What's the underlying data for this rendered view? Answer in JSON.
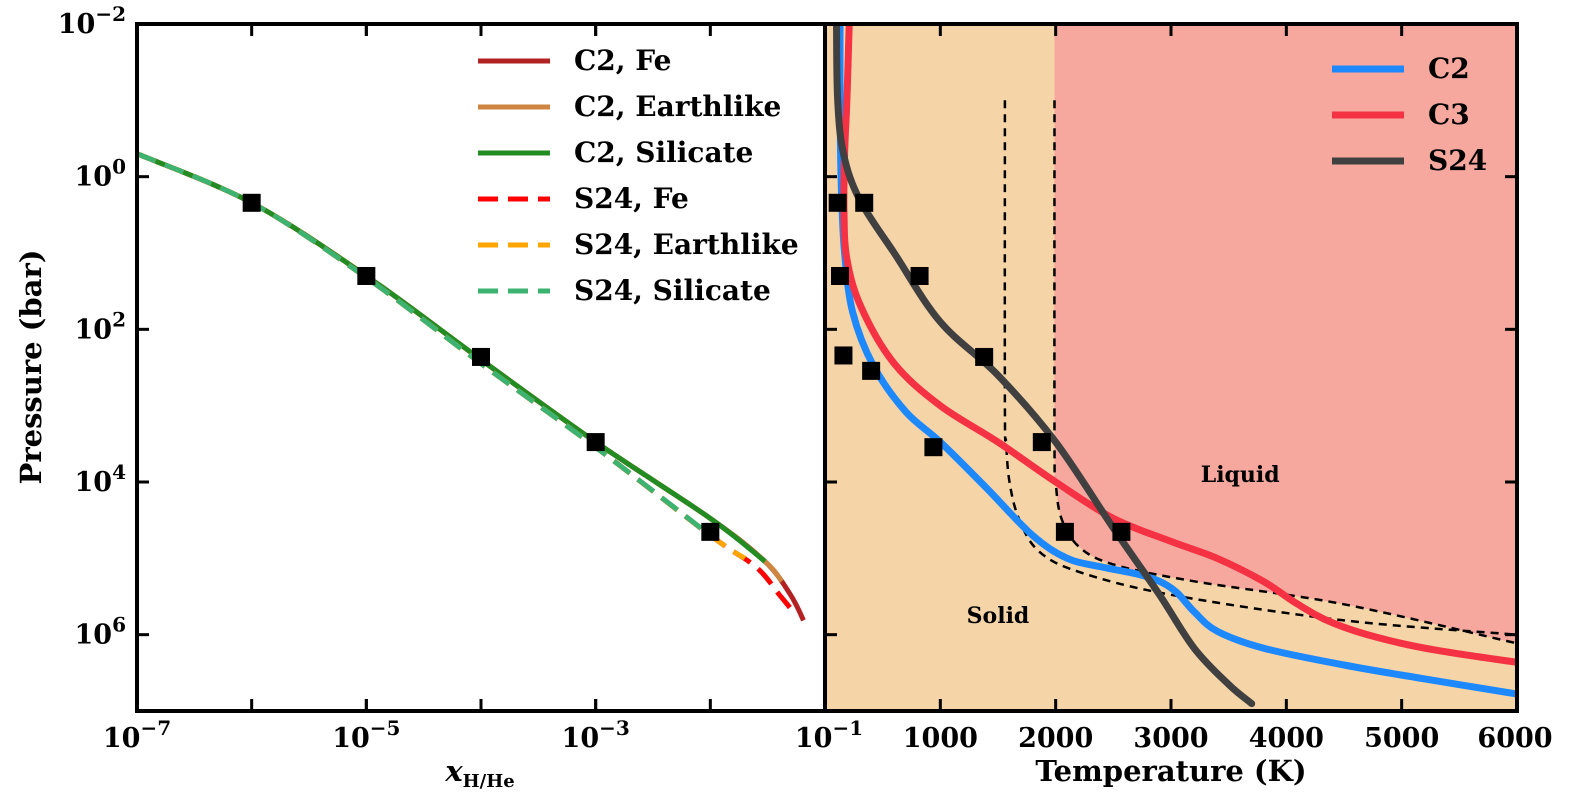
{
  "colors": {
    "c2_fe": "#b22222",
    "c2_earthlike": "#cd853f",
    "c2_silicate": "#228b22",
    "s24_fe": "#ff0000",
    "s24_earthlike": "#ffa500",
    "s24_silicate": "#3cb371",
    "c2_temp": "#1e88ff",
    "c3_temp": "#f43244",
    "s24_temp": "#404040",
    "solid_region": "#f5d5a8",
    "liquid_region": "#f6a89e",
    "marker": "#000000"
  },
  "chart_data": [
    {
      "type": "line",
      "xlabel": "x_H/He",
      "xlabel_main": "x",
      "xlabel_sub": "H/He",
      "ylabel": "Pressure (bar)",
      "xscale": "log",
      "yscale": "log",
      "yinverted": true,
      "xlim": [
        1e-07,
        0.1
      ],
      "ylim": [
        0.01,
        10000000.0
      ],
      "xticks": [
        {
          "value": 1e-07,
          "base": "10",
          "exp": "−7"
        },
        {
          "value": 1e-05,
          "base": "10",
          "exp": "−5"
        },
        {
          "value": 0.001,
          "base": "10",
          "exp": "−3"
        }
      ],
      "yticks": [
        {
          "value": 0.01,
          "base": "10",
          "exp": "−2"
        },
        {
          "value": 1,
          "base": "10",
          "exp": "0"
        },
        {
          "value": 100,
          "base": "10",
          "exp": "2"
        },
        {
          "value": 10000.0,
          "base": "10",
          "exp": "4"
        },
        {
          "value": 1000000.0,
          "base": "10",
          "exp": "6"
        }
      ],
      "legend_position": "top-right",
      "series": [
        {
          "name": "C2, Fe",
          "key": "c2_fe",
          "dash": false,
          "x": [
            1e-07,
            1e-06,
            1e-05,
            0.0001,
            0.001,
            0.01,
            0.03,
            0.05,
            0.065
          ],
          "y": [
            0.5,
            2.2,
            20,
            250,
            3000,
            30000,
            110000,
            300000,
            650000
          ]
        },
        {
          "name": "C2, Earthlike",
          "key": "c2_earthlike",
          "dash": false,
          "x": [
            1e-07,
            1e-06,
            1e-05,
            0.0001,
            0.001,
            0.01,
            0.03,
            0.042
          ],
          "y": [
            0.5,
            2.2,
            20,
            250,
            3000,
            30000,
            110000,
            200000
          ]
        },
        {
          "name": "C2, Silicate",
          "key": "c2_silicate",
          "dash": false,
          "x": [
            1e-07,
            1e-06,
            1e-05,
            0.0001,
            0.001,
            0.01,
            0.03
          ],
          "y": [
            0.5,
            2.2,
            20,
            250,
            3000,
            30000,
            110000
          ]
        },
        {
          "name": "S24, Fe",
          "key": "s24_fe",
          "dash": true,
          "x": [
            1e-07,
            1e-06,
            1e-05,
            0.0001,
            0.001,
            0.01,
            0.025,
            0.04,
            0.05
          ],
          "y": [
            0.5,
            2.2,
            21,
            280,
            3500,
            50000,
            130000,
            300000,
            450000
          ]
        },
        {
          "name": "S24, Earthlike",
          "key": "s24_earthlike",
          "dash": true,
          "x": [
            1e-07,
            1e-06,
            1e-05,
            0.0001,
            0.001,
            0.01,
            0.02
          ],
          "y": [
            0.5,
            2.2,
            21,
            280,
            3500,
            50000,
            100000
          ]
        },
        {
          "name": "S24, Silicate",
          "key": "s24_silicate",
          "dash": true,
          "x": [
            1e-07,
            1e-06,
            1e-05,
            0.0001,
            0.001,
            0.01
          ],
          "y": [
            0.5,
            2.2,
            21,
            280,
            3500,
            50000
          ]
        }
      ],
      "markers": {
        "x": [
          1e-06,
          1e-05,
          0.0001,
          0.001,
          0.01
        ],
        "y": [
          2.2,
          20,
          230,
          3000,
          45000
        ]
      }
    },
    {
      "type": "line",
      "xlabel": "Temperature (K)",
      "xscale": "linear",
      "yscale": "log",
      "yinverted": true,
      "xlim": [
        0,
        6000
      ],
      "ylim": [
        0.01,
        10000000.0
      ],
      "xticks": [
        {
          "value": 0,
          "base": "10",
          "exp": "−1"
        },
        {
          "value": 1000,
          "label": "1000"
        },
        {
          "value": 2000,
          "label": "2000"
        },
        {
          "value": 3000,
          "label": "3000"
        },
        {
          "value": 4000,
          "label": "4000"
        },
        {
          "value": 5000,
          "label": "5000"
        },
        {
          "value": 6000,
          "label": "6000"
        }
      ],
      "legend_position": "top-right",
      "regions": [
        {
          "name": "Solid",
          "label": "Solid",
          "label_x": 1500,
          "label_y": 700000
        },
        {
          "name": "Liquid",
          "label": "Liquid",
          "label_x": 3600,
          "label_y": 10000
        }
      ],
      "boundaries": [
        {
          "x": [
            1990,
            1990,
            2000,
            2050,
            2200,
            2500,
            3200,
            4500,
            6000
          ],
          "y": [
            0.1,
            3000,
            10000,
            30000,
            70000,
            120000,
            200000,
            400000,
            1300000
          ]
        },
        {
          "x": [
            1560,
            1560,
            1570,
            1600,
            1680,
            1850,
            2200,
            3000,
            4500,
            6000
          ],
          "y": [
            0.1,
            1000,
            3000,
            10000,
            30000,
            80000,
            150000,
            300000,
            650000,
            1000000
          ]
        }
      ],
      "series": [
        {
          "name": "C2",
          "key": "c2_temp",
          "x": [
            130,
            130,
            135,
            145,
            170,
            240,
            420,
            700,
            1000,
            1400,
            1800,
            2100,
            2400,
            2700,
            2900,
            3050,
            3200,
            3400,
            3800,
            4500,
            5200,
            6000
          ],
          "y": [
            0.01,
            0.1,
            0.5,
            2,
            10,
            60,
            300,
            1200,
            3000,
            12000,
            50000,
            100000,
            130000,
            160000,
            200000,
            280000,
            500000,
            900000,
            1500000,
            2500000,
            3800000,
            6000000
          ]
        },
        {
          "name": "C3",
          "key": "c3_temp",
          "x": [
            210,
            190,
            170,
            165,
            190,
            310,
            600,
            1000,
            1500,
            2000,
            2500,
            3000,
            3400,
            3800,
            4100,
            4400,
            4800,
            5300,
            6000
          ],
          "y": [
            0.01,
            0.1,
            0.5,
            3,
            12,
            50,
            280,
            1000,
            3000,
            10000,
            30000,
            60000,
            100000,
            200000,
            400000,
            700000,
            1100000,
            1600000,
            2300000
          ]
        },
        {
          "name": "S24",
          "key": "s24_temp",
          "x": [
            100,
            110,
            160,
            300,
            600,
            1000,
            1500,
            2000,
            2500,
            2900,
            3200,
            3500,
            3700
          ],
          "y": [
            0.01,
            0.1,
            0.5,
            2,
            10,
            80,
            400,
            3000,
            40000,
            300000,
            1500000,
            4500000,
            8000000
          ]
        }
      ],
      "markers": {
        "x": [
          110,
          340,
          820,
          130,
          1380,
          160,
          1880,
          400,
          940,
          2080,
          2570
        ],
        "y": [
          2.2,
          2.2,
          20,
          20,
          230,
          220,
          3000,
          350,
          3500,
          45000,
          45000
        ]
      }
    }
  ]
}
